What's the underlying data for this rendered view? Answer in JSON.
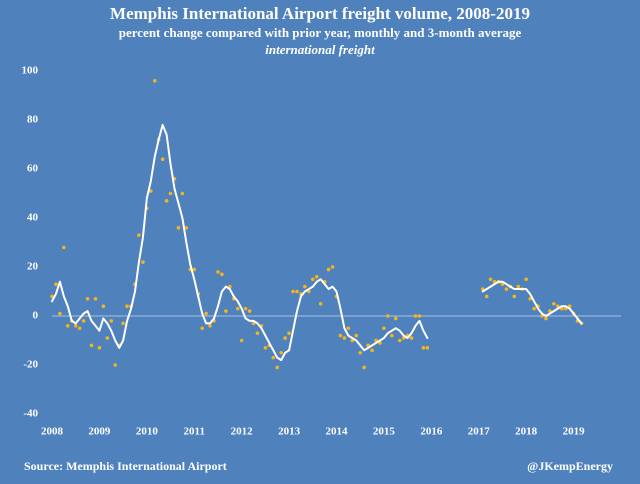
{
  "chart_data": {
    "type": "line",
    "title": "Memphis International Airport freight volume, 2008-2019",
    "subtitle": "percent change compared with prior year, monthly and 3-month average",
    "annotation": "international freight",
    "source": "Source: Memphis International Airport",
    "credit": "@JKempEnergy",
    "x": [
      2008,
      2008.083,
      2008.167,
      2008.25,
      2008.333,
      2008.417,
      2008.5,
      2008.583,
      2008.667,
      2008.75,
      2008.833,
      2008.917,
      2009,
      2009.083,
      2009.167,
      2009.25,
      2009.333,
      2009.417,
      2009.5,
      2009.583,
      2009.667,
      2009.75,
      2009.833,
      2009.917,
      2010,
      2010.083,
      2010.167,
      2010.25,
      2010.333,
      2010.417,
      2010.5,
      2010.583,
      2010.667,
      2010.75,
      2010.833,
      2010.917,
      2011,
      2011.083,
      2011.167,
      2011.25,
      2011.333,
      2011.417,
      2011.5,
      2011.583,
      2011.667,
      2011.75,
      2011.833,
      2011.917,
      2012,
      2012.083,
      2012.167,
      2012.25,
      2012.333,
      2012.417,
      2012.5,
      2012.583,
      2012.667,
      2012.75,
      2012.833,
      2012.917,
      2013,
      2013.083,
      2013.167,
      2013.25,
      2013.333,
      2013.417,
      2013.5,
      2013.583,
      2013.667,
      2013.75,
      2013.833,
      2013.917,
      2014,
      2014.083,
      2014.167,
      2014.25,
      2014.333,
      2014.417,
      2014.5,
      2014.583,
      2014.667,
      2014.75,
      2014.833,
      2014.917,
      2015,
      2015.083,
      2015.167,
      2015.25,
      2015.333,
      2015.417,
      2015.5,
      2015.583,
      2015.667,
      2015.75,
      2015.833,
      2015.917,
      2016,
      2016.083,
      2016.167,
      2016.25,
      2016.333,
      2016.417,
      2016.5,
      2016.583,
      2016.667,
      2016.75,
      2016.833,
      2016.917,
      2017,
      2017.083,
      2017.167,
      2017.25,
      2017.333,
      2017.417,
      2017.5,
      2017.583,
      2017.667,
      2017.75,
      2017.833,
      2017.917,
      2018,
      2018.083,
      2018.167,
      2018.25,
      2018.333,
      2018.417,
      2018.5,
      2018.583,
      2018.667,
      2018.75,
      2018.833,
      2018.917,
      2019,
      2019.083,
      2019.167
    ],
    "series": [
      {
        "mode": "markers",
        "color": "#f2b51e",
        "values": [
          8,
          13,
          1,
          28,
          -4,
          -2,
          -4,
          -5,
          -2,
          7,
          -12,
          7,
          -13,
          4,
          -9,
          -2,
          -20,
          -12,
          -3,
          4,
          4,
          13,
          33,
          22,
          44,
          51,
          96,
          72,
          64,
          47,
          50,
          56,
          36,
          50,
          36,
          19,
          19,
          9,
          -5,
          1,
          -4,
          -2,
          18,
          17,
          2,
          12,
          7,
          3,
          -10,
          3,
          2,
          -3,
          -7,
          -4,
          -13,
          -12,
          -17,
          -21,
          -15,
          -9,
          -7,
          10,
          10,
          9,
          12,
          10,
          15,
          16,
          5,
          14,
          19,
          20,
          8,
          -8,
          -9,
          -5,
          -10,
          -8,
          -15,
          -21,
          -12,
          -14,
          -10,
          -11,
          -5,
          0,
          -8,
          -1,
          -10,
          -9,
          -8,
          -9,
          0,
          0,
          -13,
          -13,
          null,
          null,
          null,
          null,
          null,
          null,
          null,
          null,
          null,
          null,
          null,
          null,
          null,
          11,
          8,
          15,
          14,
          14,
          13,
          11,
          12,
          8,
          12,
          11,
          15,
          7,
          3,
          4,
          0,
          -1,
          2,
          5,
          4,
          3,
          3,
          4,
          1,
          -2,
          -3
        ]
      },
      {
        "mode": "line",
        "color": "#ffffff",
        "values": [
          6,
          9,
          14,
          8,
          4,
          -2,
          -3,
          -1,
          1,
          2,
          -2,
          -4,
          -6,
          -1,
          -3,
          -6,
          -10,
          -13,
          -10,
          -2,
          3,
          10,
          22,
          32,
          48,
          55,
          65,
          72,
          78,
          74,
          62,
          52,
          46,
          40,
          30,
          21,
          15,
          8,
          1,
          -3,
          -3,
          -1,
          4,
          10,
          12,
          11,
          8,
          6,
          3,
          -1,
          -2,
          -2,
          -3,
          -5,
          -8,
          -11,
          -14,
          -17,
          -18,
          -15,
          -14,
          -6,
          2,
          8,
          10,
          11,
          12,
          14,
          15,
          13,
          11,
          12,
          10,
          3,
          -5,
          -8,
          -9,
          -10,
          -12,
          -14,
          -13,
          -12,
          -11,
          -10,
          -9,
          -7,
          -6,
          -5,
          -6,
          -8,
          -9,
          -7,
          -4,
          -2,
          -6,
          -9,
          null,
          null,
          null,
          null,
          null,
          null,
          null,
          null,
          null,
          null,
          null,
          null,
          null,
          10,
          11,
          12,
          13,
          14,
          14,
          13,
          12,
          11,
          11,
          11,
          11,
          9,
          6,
          3,
          1,
          0,
          1,
          2,
          3,
          4,
          4,
          3,
          1,
          -1,
          -3
        ]
      }
    ],
    "xlim": [
      2008,
      2020
    ],
    "xticks": [
      2008,
      2009,
      2010,
      2011,
      2012,
      2013,
      2014,
      2015,
      2016,
      2017,
      2018,
      2019
    ],
    "ylim": [
      -40,
      100
    ],
    "yticks": [
      -40,
      -20,
      0,
      20,
      40,
      60,
      80,
      100
    ],
    "zero_line": true,
    "grid": false
  }
}
